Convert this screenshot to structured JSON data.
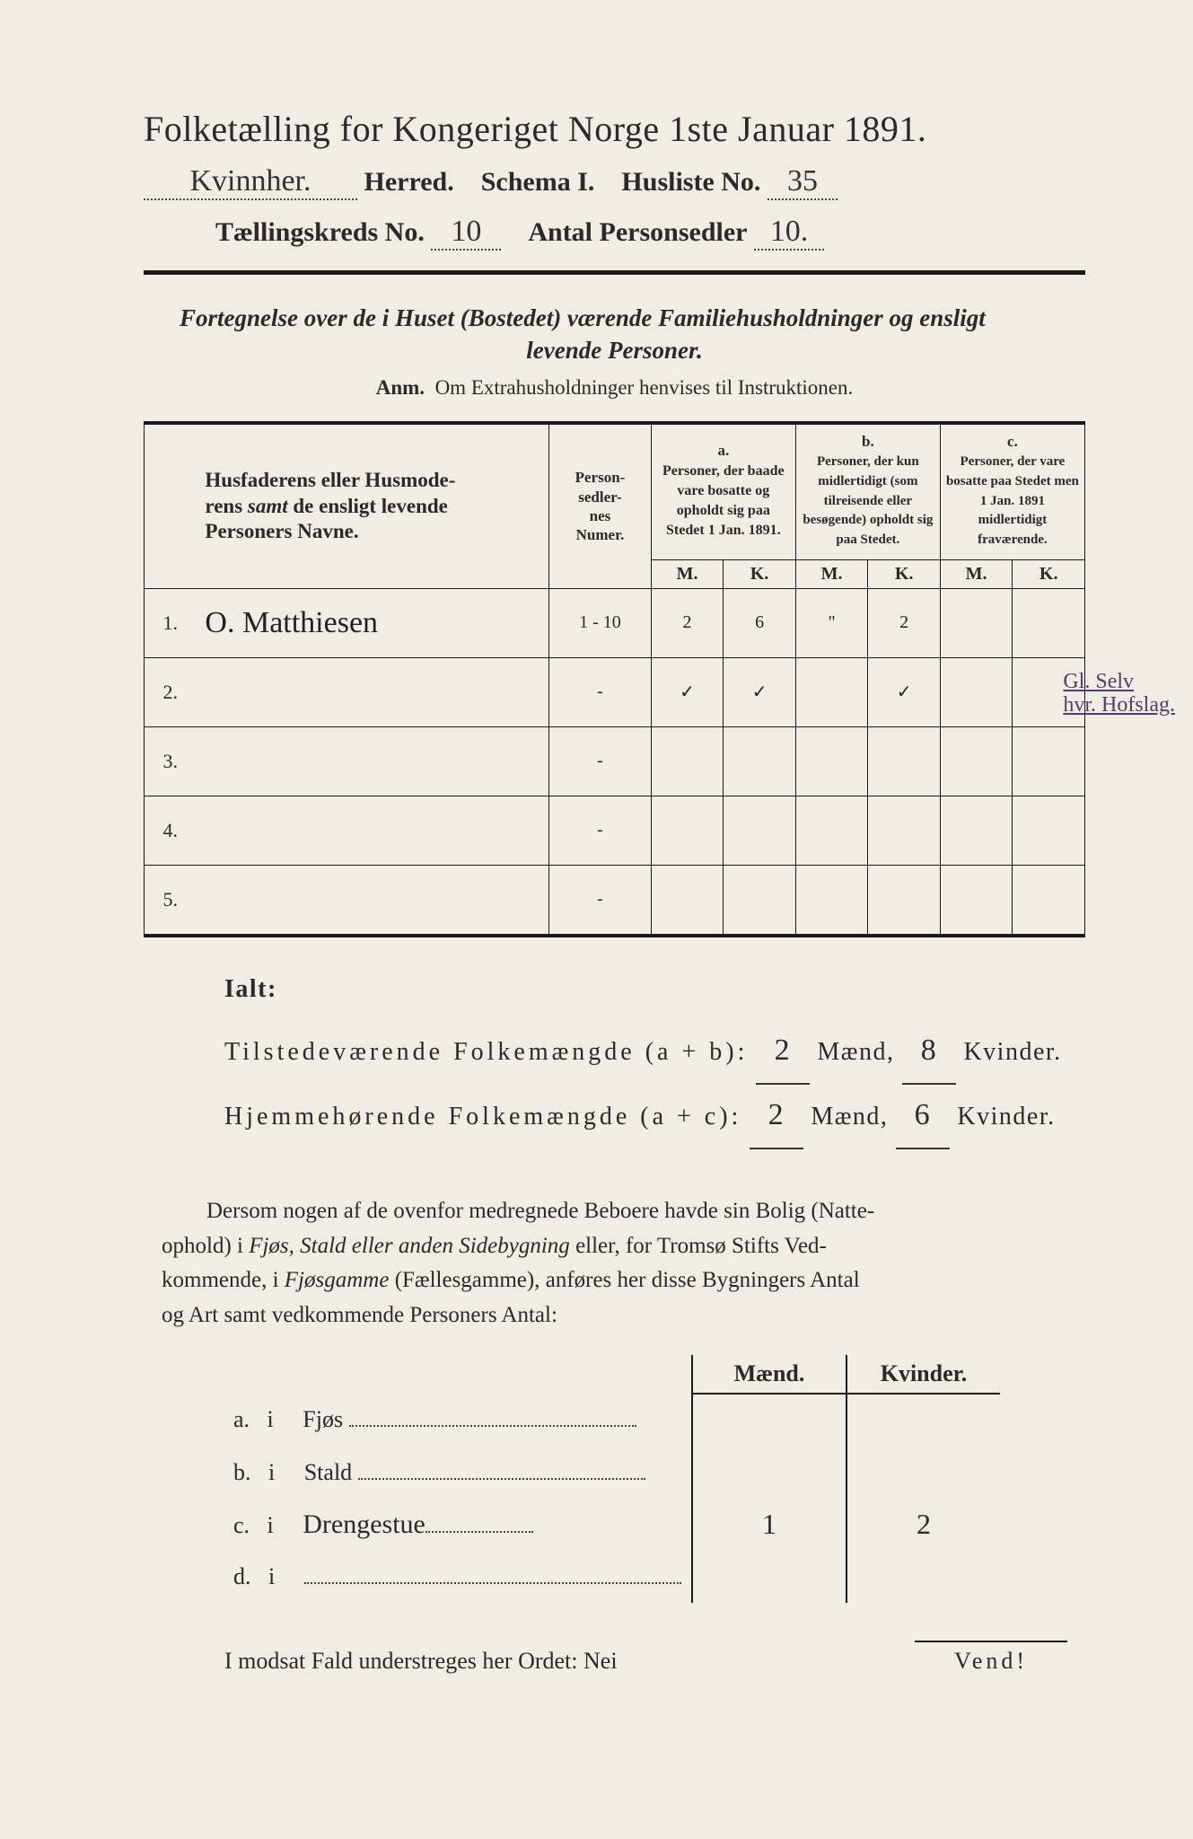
{
  "header": {
    "title": "Folketælling for Kongeriget Norge 1ste Januar 1891.",
    "herred_value": "Kvinnher.",
    "herred_label": "Herred.",
    "schema_label": "Schema I.",
    "husliste_label": "Husliste No.",
    "husliste_value": "35",
    "kreds_label": "Tællingskreds No.",
    "kreds_value": "10",
    "personsedler_label": "Antal Personsedler",
    "personsedler_value": "10."
  },
  "fortegnelse_line1": "Fortegnelse over de i Huset (Bostedet) værende Familiehusholdninger og ensligt",
  "fortegnelse_line2": "levende Personer.",
  "anm_label": "Anm.",
  "anm_text": "Om Extrahusholdninger henvises til Instruktionen.",
  "table": {
    "col_names_head": "Husfaderens eller Husmoderens samt de ensligt levende Personers Navne.",
    "col_personsedler": "Personsedlernes Numer.",
    "group_a_label": "a.",
    "group_a_text": "Personer, der baade vare bosatte og opholdt sig paa Stedet 1 Jan. 1891.",
    "group_b_label": "b.",
    "group_b_text": "Personer, der kun midlertidigt (som tilreisende eller besøgende) opholdt sig paa Stedet.",
    "group_c_label": "c.",
    "group_c_text": "Personer, der vare bosatte paa Stedet men 1 Jan. 1891 midlertidigt fraværende.",
    "mk_m": "M.",
    "mk_k": "K.",
    "rows": [
      {
        "n": "1.",
        "name": "O. Matthiesen",
        "ps": "1 - 10",
        "a_m": "2",
        "a_k": "6",
        "b_m": "\"",
        "b_k": "2",
        "c_m": "",
        "c_k": ""
      },
      {
        "n": "2.",
        "name": "",
        "ps": "-",
        "a_m": "✓",
        "a_k": "✓",
        "b_m": "",
        "b_k": "✓",
        "c_m": "",
        "c_k": ""
      },
      {
        "n": "3.",
        "name": "",
        "ps": "-",
        "a_m": "",
        "a_k": "",
        "b_m": "",
        "b_k": "",
        "c_m": "",
        "c_k": ""
      },
      {
        "n": "4.",
        "name": "",
        "ps": "-",
        "a_m": "",
        "a_k": "",
        "b_m": "",
        "b_k": "",
        "c_m": "",
        "c_k": ""
      },
      {
        "n": "5.",
        "name": "",
        "ps": "-",
        "a_m": "",
        "a_k": "",
        "b_m": "",
        "b_k": "",
        "c_m": "",
        "c_k": ""
      }
    ]
  },
  "margin_note_line1": "Gl. Selv",
  "margin_note_line2": "hvr. Hofslag.",
  "totals": {
    "ialt": "Ialt:",
    "line1_label": "Tilstedeværende Folkemængde (a + b):",
    "line1_m": "2",
    "line1_k": "8",
    "line2_label": "Hjemmehørende Folkemængde (a + c):",
    "line2_m": "2",
    "line2_k": "6",
    "maend": "Mænd,",
    "kvinder": "Kvinder."
  },
  "dersom": "Dersom nogen af de ovenfor medregnede Beboere havde sin Bolig (Natteophold) i Fjøs, Stald eller anden Sidebygning eller, for Tromsø Stifts Vedkommende, i Fjøsgamme (Fællesgamme), anføres her disse Bygningers Antal og Art samt vedkommende Personers Antal:",
  "buildings": {
    "head_m": "Mænd.",
    "head_k": "Kvinder.",
    "rows": [
      {
        "key": "a.",
        "i": "i",
        "label": "Fjøs",
        "m": "",
        "k": ""
      },
      {
        "key": "b.",
        "i": "i",
        "label": "Stald",
        "m": "",
        "k": ""
      },
      {
        "key": "c.",
        "i": "i",
        "label": "Drengestue",
        "m": "1",
        "k": "2"
      },
      {
        "key": "d.",
        "i": "i",
        "label": "",
        "m": "",
        "k": ""
      }
    ]
  },
  "modsat": "I modsat Fald understreges her Ordet: Nei",
  "vend": "Vend!"
}
